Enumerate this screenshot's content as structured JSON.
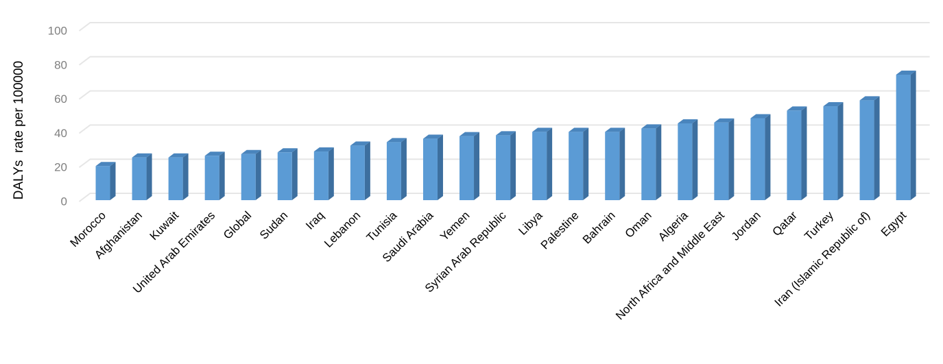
{
  "chart_data": {
    "type": "bar3d",
    "y_label": "DALYs  rate per 100000",
    "categories": [
      "Morocco",
      "Afghanistan",
      "Kuwait",
      "United Arab Emirates",
      "Global",
      "Sudan",
      "Iraq",
      "Lebanon",
      "Tunisia",
      "Saudi Arabia",
      "Yemen",
      "Syrian Arab Republic",
      "Libya",
      "Palestine",
      "Bahrain",
      "Oman",
      "Algeria",
      "North Africa and Middle East",
      "Jordan",
      "Qatar",
      "Turkey",
      "Iran (Islamic Republic of)",
      "Egypt"
    ],
    "values": [
      20,
      25,
      25,
      26,
      27,
      28,
      28.5,
      32,
      34,
      36,
      37.5,
      38,
      40,
      40,
      40,
      42,
      45,
      45.5,
      48,
      52.5,
      55,
      58.5,
      73.5
    ],
    "color": "#5b9bd5",
    "ylim": [
      0,
      100
    ],
    "yticks": [
      0,
      20,
      40,
      60,
      80,
      100
    ],
    "grid": true
  }
}
